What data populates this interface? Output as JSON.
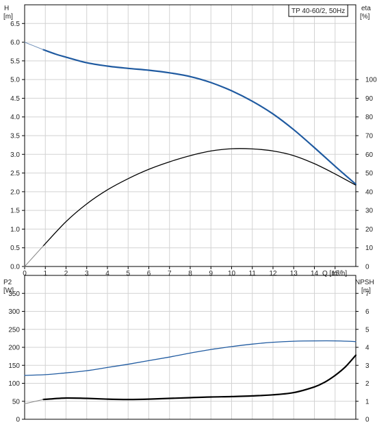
{
  "chart_data": [
    {
      "type": "line",
      "panel": "top",
      "title": "TP 40-60/2, 50Hz",
      "xlabel": "Q [m³/h]",
      "x_ticks": [
        "0",
        "1",
        "2",
        "3",
        "4",
        "5",
        "6",
        "7",
        "8",
        "9",
        "10",
        "11",
        "12",
        "13",
        "14",
        "15"
      ],
      "xlim": [
        0,
        16
      ],
      "grid": true,
      "left_axis": {
        "title_line1": "H",
        "title_line2": "[m]",
        "ylim": [
          0,
          7.0
        ],
        "ticks": [
          "0.0",
          "0.5",
          "1.0",
          "1.5",
          "2.0",
          "2.5",
          "3.0",
          "3.5",
          "4.0",
          "4.5",
          "5.0",
          "5.5",
          "6.0",
          "6.5"
        ]
      },
      "right_axis": {
        "title_line1": "eta",
        "title_line2": "[%]",
        "ylim": [
          0,
          140
        ],
        "ticks": [
          "0",
          "10",
          "20",
          "30",
          "40",
          "50",
          "60",
          "70",
          "80",
          "90",
          "100"
        ]
      },
      "series": [
        {
          "axis": "left",
          "color": "#1f5aa0",
          "width": 2.2,
          "style": "thick",
          "x": [
            0.9,
            1.5,
            2,
            3,
            4,
            5,
            6,
            7,
            8,
            9,
            10,
            11,
            12,
            13,
            14,
            15,
            16
          ],
          "y": [
            5.8,
            5.68,
            5.6,
            5.45,
            5.36,
            5.3,
            5.25,
            5.18,
            5.08,
            4.92,
            4.7,
            4.42,
            4.08,
            3.66,
            3.18,
            2.68,
            2.2
          ]
        },
        {
          "axis": "left",
          "color": "#6f8fb8",
          "width": 1,
          "style": "thin",
          "x": [
            0,
            0.9
          ],
          "y": [
            6.0,
            5.8
          ]
        },
        {
          "axis": "right",
          "color": "#000000",
          "width": 1.3,
          "style": "thick",
          "x": [
            0.9,
            2,
            3,
            4,
            5,
            6,
            7,
            8,
            9,
            10,
            11,
            12,
            13,
            14,
            15,
            16
          ],
          "y": [
            11,
            24,
            33.5,
            41,
            47,
            52,
            56,
            59.3,
            61.8,
            63,
            62.9,
            61.8,
            59.3,
            55,
            49.5,
            43.5
          ]
        },
        {
          "axis": "right",
          "color": "#888888",
          "width": 1,
          "style": "thin",
          "x": [
            0,
            0.9
          ],
          "y": [
            0,
            11
          ]
        }
      ]
    },
    {
      "type": "line",
      "panel": "bottom",
      "xlim": [
        0,
        16
      ],
      "grid": true,
      "left_axis": {
        "title_line1": "P2",
        "title_line2": "[W]",
        "ylim": [
          0,
          400
        ],
        "ticks": [
          "0",
          "50",
          "100",
          "150",
          "200",
          "250",
          "300",
          "350"
        ]
      },
      "right_axis": {
        "title_line1": "NPSH",
        "title_line2": "[m]",
        "ylim": [
          0,
          8
        ],
        "ticks": [
          "0",
          "1",
          "2",
          "3",
          "4",
          "5",
          "6",
          "7"
        ]
      },
      "series": [
        {
          "axis": "left",
          "color": "#1f5aa0",
          "width": 1.3,
          "style": "thick",
          "x": [
            0,
            1,
            2,
            3,
            4,
            5,
            6,
            7,
            8,
            9,
            10,
            11,
            12,
            13,
            14,
            15,
            16
          ],
          "y": [
            122,
            124,
            129,
            135,
            144,
            153,
            163,
            173,
            184,
            194,
            202,
            209,
            214,
            217,
            218,
            218,
            216
          ]
        },
        {
          "axis": "left",
          "color": "#000000",
          "width": 2.2,
          "style": "thick",
          "x": [
            0.9,
            2,
            3,
            4,
            5,
            6,
            7,
            8,
            9,
            10,
            11,
            12,
            13,
            14,
            14.5,
            15,
            15.5,
            16
          ],
          "y": [
            55,
            59,
            58,
            56,
            55,
            56,
            58,
            60,
            62,
            63,
            65,
            68,
            74,
            90,
            103,
            122,
            146,
            178
          ]
        },
        {
          "axis": "left",
          "color": "#888888",
          "width": 1,
          "style": "thin",
          "x": [
            0,
            0.9
          ],
          "y": [
            43,
            55
          ]
        }
      ]
    }
  ]
}
